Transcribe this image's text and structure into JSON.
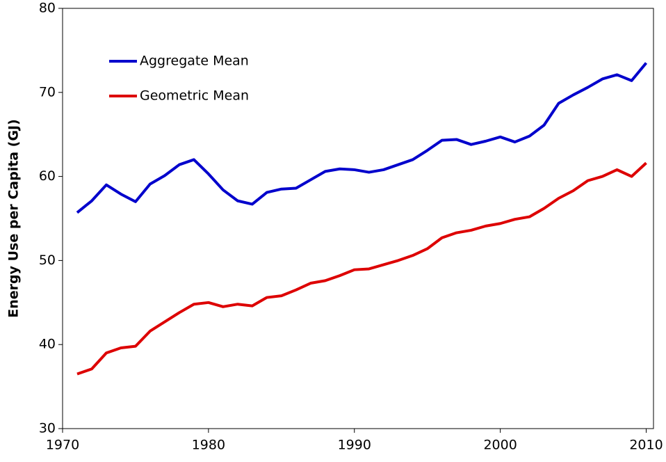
{
  "chart_data": {
    "type": "line",
    "y_label": "Energy Use per Capita (GJ)",
    "x": [
      1971,
      1972,
      1973,
      1974,
      1975,
      1976,
      1977,
      1978,
      1979,
      1980,
      1981,
      1982,
      1983,
      1984,
      1985,
      1986,
      1987,
      1988,
      1989,
      1990,
      1991,
      1992,
      1993,
      1994,
      1995,
      1996,
      1997,
      1998,
      1999,
      2000,
      2001,
      2002,
      2003,
      2004,
      2005,
      2006,
      2007,
      2008,
      2009,
      2010
    ],
    "series": [
      {
        "name": "Aggregate Mean",
        "color": "#0000cc",
        "values": [
          55.7,
          57.1,
          59.0,
          57.9,
          57.0,
          59.1,
          60.1,
          61.4,
          62.0,
          60.3,
          58.4,
          57.1,
          56.7,
          58.1,
          58.5,
          58.6,
          59.6,
          60.6,
          60.9,
          60.8,
          60.5,
          60.8,
          61.4,
          62.0,
          63.1,
          64.3,
          64.4,
          63.8,
          64.2,
          64.7,
          64.1,
          64.8,
          66.1,
          68.7,
          69.7,
          70.6,
          71.6,
          72.1,
          71.4,
          73.5
        ]
      },
      {
        "name": "Geometric Mean",
        "color": "#dd0000",
        "values": [
          36.5,
          37.1,
          39.0,
          39.6,
          39.8,
          41.6,
          42.7,
          43.8,
          44.8,
          45.0,
          44.5,
          44.8,
          44.6,
          45.6,
          45.8,
          46.5,
          47.3,
          47.6,
          48.2,
          48.9,
          49.0,
          49.5,
          50.0,
          50.6,
          51.4,
          52.7,
          53.3,
          53.6,
          54.1,
          54.4,
          54.9,
          55.2,
          56.2,
          57.4,
          58.3,
          59.5,
          60.0,
          60.8,
          60.0,
          61.6
        ]
      }
    ],
    "xlim": [
      1970,
      2010.5
    ],
    "xticks": [
      1970,
      1980,
      1990,
      2000,
      2010
    ],
    "ylim": [
      30,
      80
    ],
    "yticks": [
      30,
      40,
      50,
      60,
      70,
      80
    ],
    "legend": "upper-left"
  }
}
